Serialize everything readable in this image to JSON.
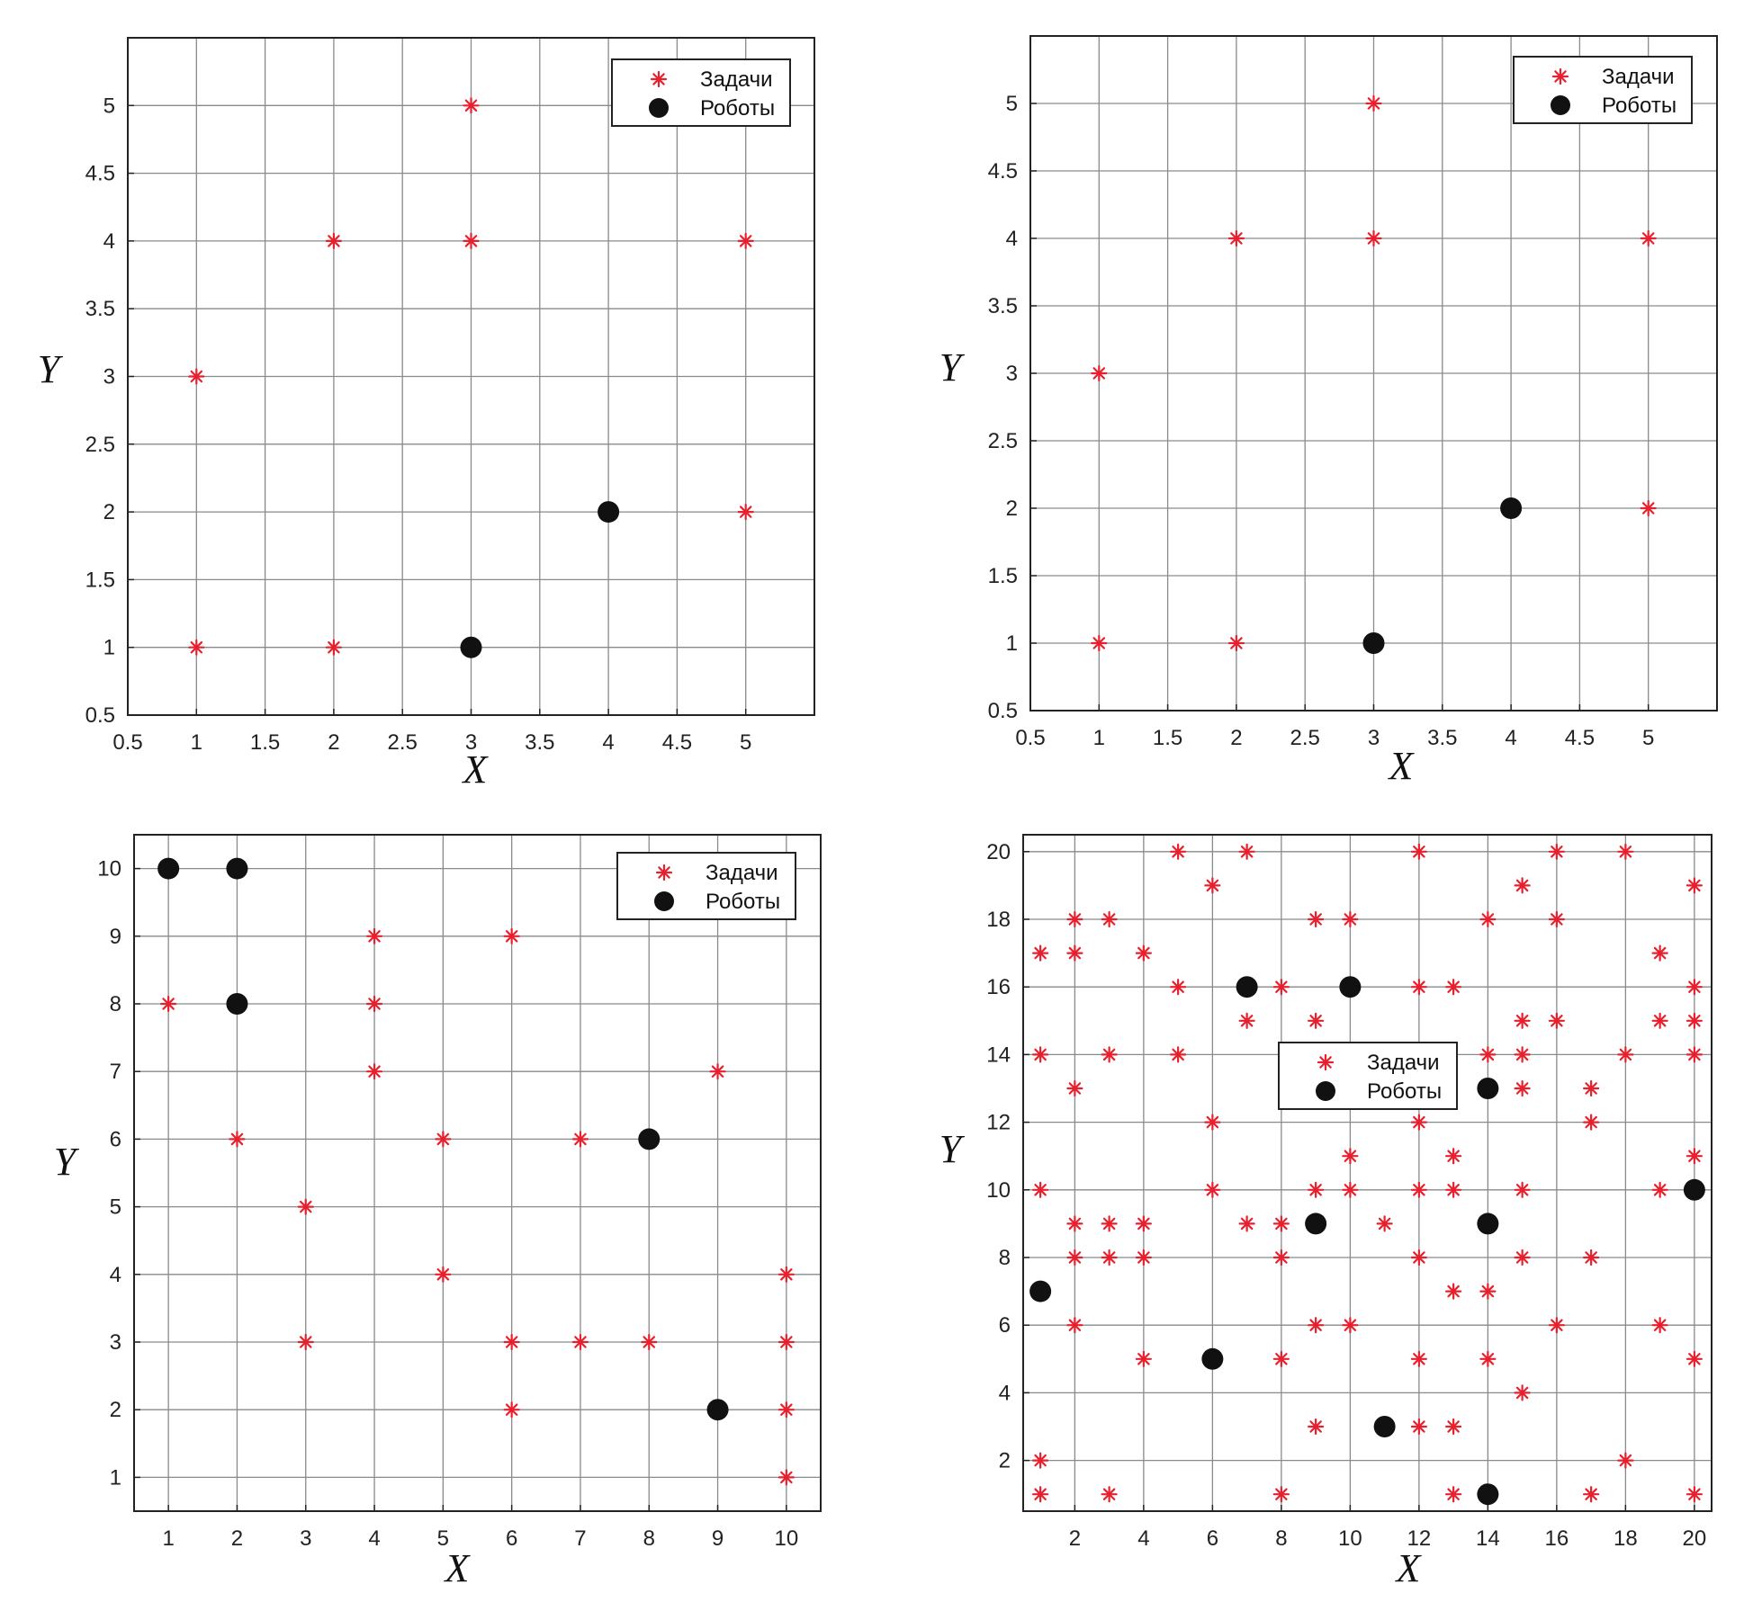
{
  "colors": {
    "task": "#e8202e",
    "robot": "#111111",
    "grid": "#8a8a8a",
    "frame": "#222222"
  },
  "chart_data": [
    {
      "type": "scatter",
      "title": "",
      "xlabel": "X",
      "ylabel": "Y",
      "xlim": [
        0.5,
        5.5
      ],
      "ylim": [
        0.5,
        5.5
      ],
      "xticks": [
        0.5,
        1,
        1.5,
        2,
        2.5,
        3,
        3.5,
        4,
        4.5,
        5
      ],
      "yticks": [
        0.5,
        1,
        1.5,
        2,
        2.5,
        3,
        3.5,
        4,
        4.5,
        5
      ],
      "xtick_labels": [
        "0.5",
        "1",
        "1.5",
        "2",
        "2.5",
        "3",
        "3.5",
        "4",
        "4.5",
        "5"
      ],
      "ytick_labels": [
        "0.5",
        "1",
        "1.5",
        "2",
        "2.5",
        "3",
        "3.5",
        "4",
        "4.5",
        "5"
      ],
      "grid": true,
      "legend_position": "top-right",
      "series": [
        {
          "name": "Задачи",
          "marker": "asterisk",
          "points": [
            [
              1,
              1
            ],
            [
              2,
              1
            ],
            [
              1,
              3
            ],
            [
              2,
              4
            ],
            [
              3,
              4
            ],
            [
              3,
              5
            ],
            [
              5,
              4
            ],
            [
              5,
              2
            ]
          ]
        },
        {
          "name": "Роботы",
          "marker": "dot",
          "points": [
            [
              3,
              1
            ],
            [
              4,
              2
            ]
          ]
        }
      ]
    },
    {
      "type": "scatter",
      "title": "",
      "xlabel": "X",
      "ylabel": "Y",
      "xlim": [
        0.5,
        5.5
      ],
      "ylim": [
        0.5,
        5.5
      ],
      "xticks": [
        0.5,
        1,
        1.5,
        2,
        2.5,
        3,
        3.5,
        4,
        4.5,
        5
      ],
      "yticks": [
        0.5,
        1,
        1.5,
        2,
        2.5,
        3,
        3.5,
        4,
        4.5,
        5
      ],
      "xtick_labels": [
        "0.5",
        "1",
        "1.5",
        "2",
        "2.5",
        "3",
        "3.5",
        "4",
        "4.5",
        "5"
      ],
      "ytick_labels": [
        "0.5",
        "1",
        "1.5",
        "2",
        "2.5",
        "3",
        "3.5",
        "4",
        "4.5",
        "5"
      ],
      "grid": true,
      "legend_position": "top-right",
      "series": [
        {
          "name": "Задачи",
          "marker": "asterisk",
          "points": [
            [
              1,
              1
            ],
            [
              2,
              1
            ],
            [
              1,
              3
            ],
            [
              2,
              4
            ],
            [
              3,
              4
            ],
            [
              3,
              5
            ],
            [
              5,
              4
            ],
            [
              5,
              2
            ]
          ]
        },
        {
          "name": "Роботы",
          "marker": "dot",
          "points": [
            [
              3,
              1
            ],
            [
              4,
              2
            ]
          ]
        }
      ]
    },
    {
      "type": "scatter",
      "title": "",
      "xlabel": "X",
      "ylabel": "Y",
      "xlim": [
        0.5,
        10.5
      ],
      "ylim": [
        0.5,
        10.5
      ],
      "xticks": [
        1,
        2,
        3,
        4,
        5,
        6,
        7,
        8,
        9,
        10
      ],
      "yticks": [
        1,
        2,
        3,
        4,
        5,
        6,
        7,
        8,
        9,
        10
      ],
      "xtick_labels": [
        "1",
        "2",
        "3",
        "4",
        "5",
        "6",
        "7",
        "8",
        "9",
        "10"
      ],
      "ytick_labels": [
        "1",
        "2",
        "3",
        "4",
        "5",
        "6",
        "7",
        "8",
        "9",
        "10"
      ],
      "grid": true,
      "legend_position": "top-right",
      "series": [
        {
          "name": "Задачи",
          "marker": "asterisk",
          "points": [
            [
              1,
              8
            ],
            [
              2,
              6
            ],
            [
              3,
              5
            ],
            [
              3,
              3
            ],
            [
              4,
              9
            ],
            [
              4,
              8
            ],
            [
              4,
              7
            ],
            [
              5,
              6
            ],
            [
              5,
              4
            ],
            [
              6,
              9
            ],
            [
              6,
              3
            ],
            [
              6,
              2
            ],
            [
              7,
              6
            ],
            [
              7,
              3
            ],
            [
              8,
              3
            ],
            [
              9,
              7
            ],
            [
              10,
              4
            ],
            [
              10,
              3
            ],
            [
              10,
              2
            ],
            [
              10,
              1
            ]
          ]
        },
        {
          "name": "Роботы",
          "marker": "dot",
          "points": [
            [
              1,
              10
            ],
            [
              2,
              10
            ],
            [
              2,
              8
            ],
            [
              8,
              6
            ],
            [
              9,
              2
            ]
          ]
        }
      ]
    },
    {
      "type": "scatter",
      "title": "",
      "xlabel": "X",
      "ylabel": "Y",
      "xlim": [
        0.5,
        20.5
      ],
      "ylim": [
        0.5,
        20.5
      ],
      "xticks": [
        2,
        4,
        6,
        8,
        10,
        12,
        14,
        16,
        18,
        20
      ],
      "yticks": [
        2,
        4,
        6,
        8,
        10,
        12,
        14,
        16,
        18,
        20
      ],
      "xtick_labels": [
        "2",
        "4",
        "6",
        "8",
        "10",
        "12",
        "14",
        "16",
        "18",
        "20"
      ],
      "ytick_labels": [
        "2",
        "4",
        "6",
        "8",
        "10",
        "12",
        "14",
        "16",
        "18",
        "20"
      ],
      "grid": true,
      "legend_position": "center",
      "series": [
        {
          "name": "Задачи",
          "marker": "asterisk",
          "points": [
            [
              1,
              17
            ],
            [
              1,
              14
            ],
            [
              1,
              10
            ],
            [
              1,
              2
            ],
            [
              1,
              1
            ],
            [
              2,
              18
            ],
            [
              2,
              17
            ],
            [
              2,
              13
            ],
            [
              2,
              9
            ],
            [
              2,
              8
            ],
            [
              2,
              6
            ],
            [
              3,
              18
            ],
            [
              3,
              14
            ],
            [
              3,
              9
            ],
            [
              3,
              8
            ],
            [
              3,
              1
            ],
            [
              4,
              17
            ],
            [
              4,
              9
            ],
            [
              4,
              8
            ],
            [
              4,
              5
            ],
            [
              5,
              20
            ],
            [
              5,
              16
            ],
            [
              5,
              14
            ],
            [
              6,
              19
            ],
            [
              6,
              12
            ],
            [
              6,
              10
            ],
            [
              7,
              20
            ],
            [
              7,
              15
            ],
            [
              7,
              9
            ],
            [
              8,
              16
            ],
            [
              8,
              9
            ],
            [
              8,
              8
            ],
            [
              8,
              5
            ],
            [
              8,
              1
            ],
            [
              9,
              18
            ],
            [
              9,
              15
            ],
            [
              9,
              10
            ],
            [
              9,
              6
            ],
            [
              9,
              3
            ],
            [
              10,
              18
            ],
            [
              10,
              11
            ],
            [
              10,
              10
            ],
            [
              10,
              6
            ],
            [
              11,
              9
            ],
            [
              12,
              20
            ],
            [
              12,
              16
            ],
            [
              12,
              12
            ],
            [
              12,
              10
            ],
            [
              12,
              8
            ],
            [
              12,
              5
            ],
            [
              12,
              3
            ],
            [
              13,
              16
            ],
            [
              13,
              11
            ],
            [
              13,
              10
            ],
            [
              13,
              7
            ],
            [
              13,
              3
            ],
            [
              13,
              1
            ],
            [
              14,
              18
            ],
            [
              14,
              14
            ],
            [
              14,
              7
            ],
            [
              14,
              5
            ],
            [
              15,
              19
            ],
            [
              15,
              15
            ],
            [
              15,
              14
            ],
            [
              15,
              13
            ],
            [
              15,
              10
            ],
            [
              15,
              8
            ],
            [
              15,
              4
            ],
            [
              16,
              20
            ],
            [
              16,
              18
            ],
            [
              16,
              15
            ],
            [
              16,
              6
            ],
            [
              17,
              13
            ],
            [
              17,
              12
            ],
            [
              17,
              8
            ],
            [
              17,
              1
            ],
            [
              18,
              20
            ],
            [
              18,
              14
            ],
            [
              18,
              2
            ],
            [
              19,
              17
            ],
            [
              19,
              15
            ],
            [
              19,
              10
            ],
            [
              19,
              6
            ],
            [
              20,
              19
            ],
            [
              20,
              16
            ],
            [
              20,
              15
            ],
            [
              20,
              14
            ],
            [
              20,
              11
            ],
            [
              20,
              5
            ],
            [
              20,
              1
            ]
          ]
        },
        {
          "name": "Роботы",
          "marker": "dot",
          "points": [
            [
              1,
              7
            ],
            [
              6,
              5
            ],
            [
              7,
              16
            ],
            [
              9,
              9
            ],
            [
              10,
              16
            ],
            [
              11,
              3
            ],
            [
              14,
              13
            ],
            [
              14,
              9
            ],
            [
              14,
              1
            ],
            [
              20,
              10
            ]
          ]
        }
      ]
    }
  ]
}
